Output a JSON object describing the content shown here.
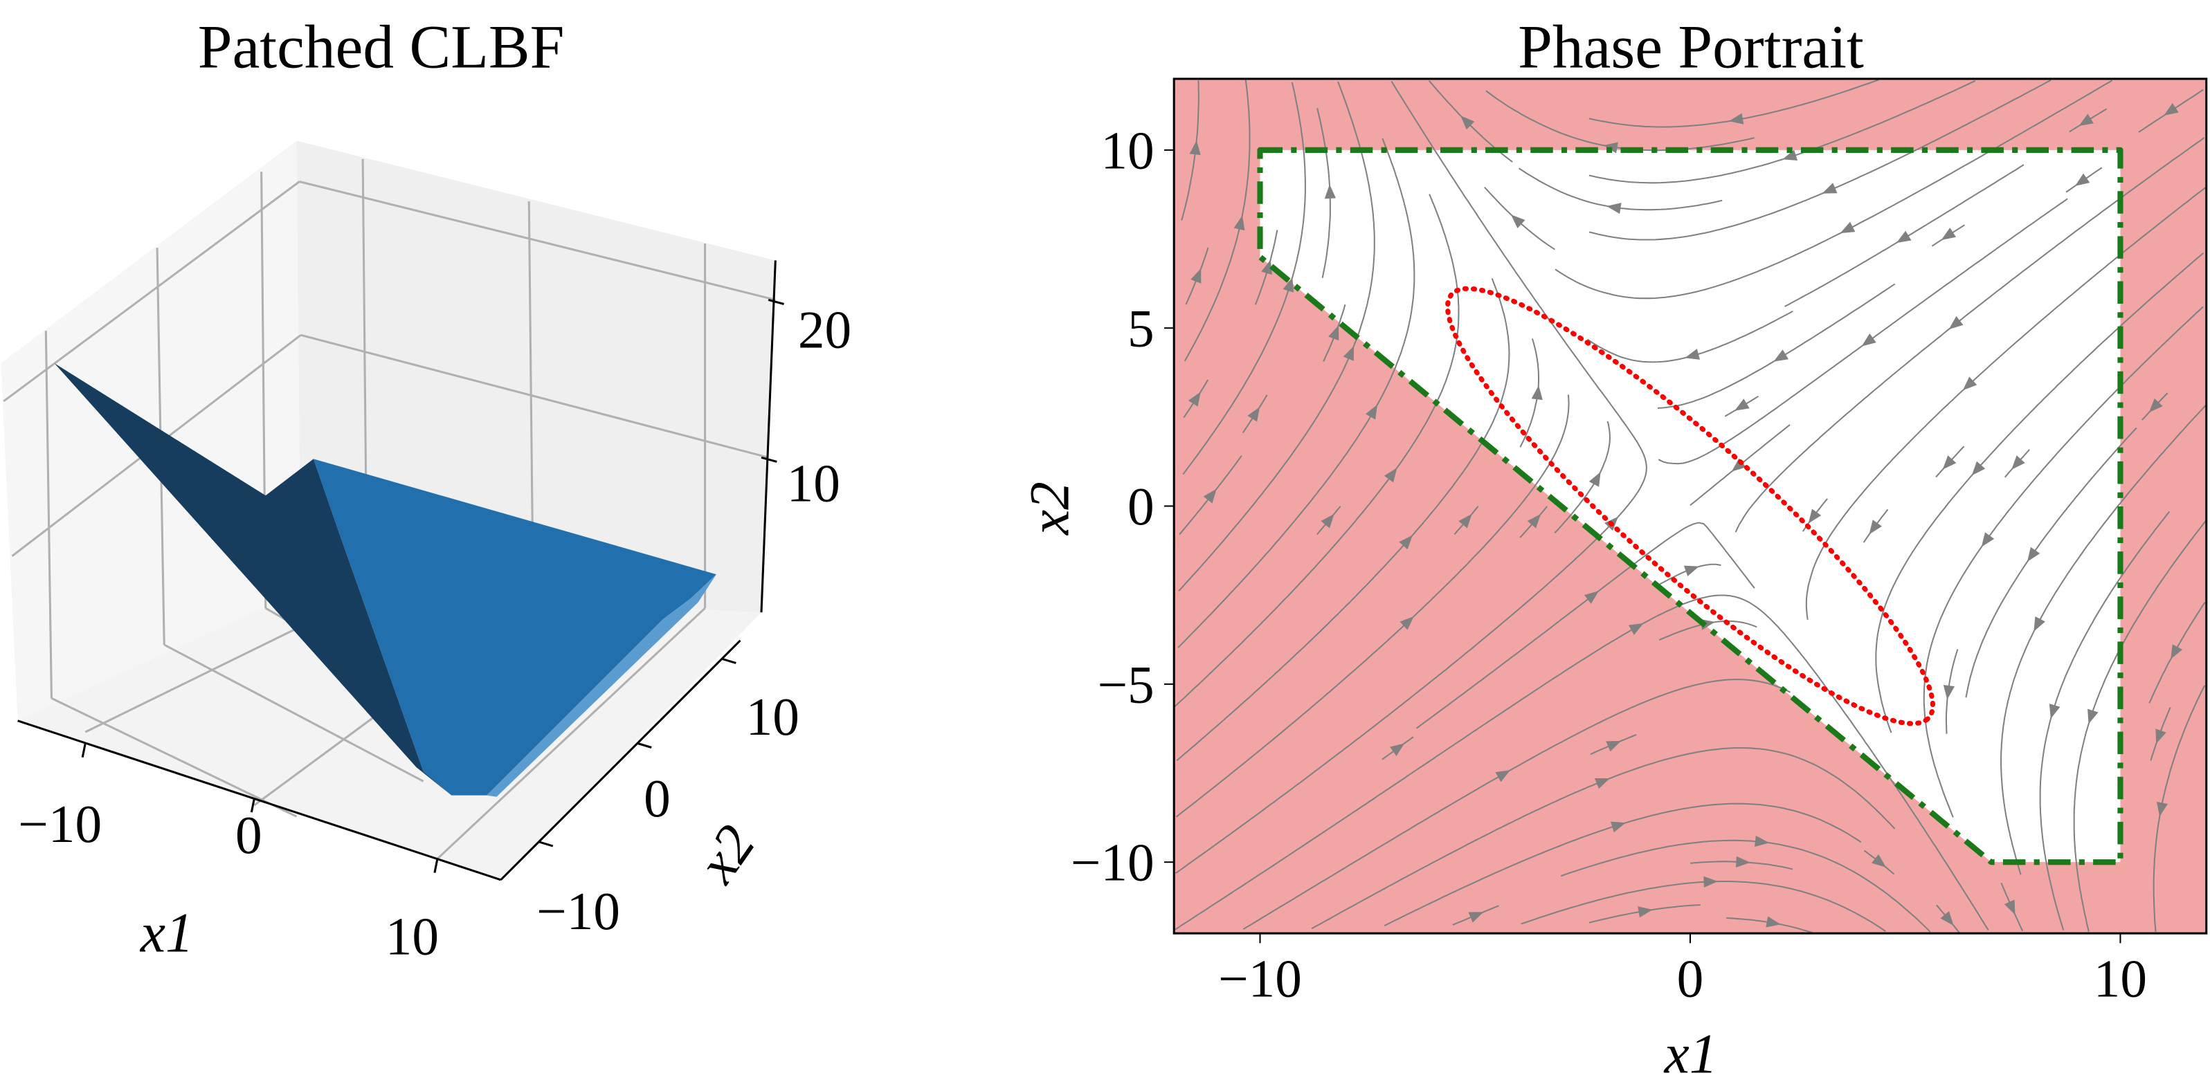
{
  "chart_data": [
    {
      "type": "surface3d",
      "title": "Patched CLBF",
      "xlabel": "x1",
      "ylabel": "x2",
      "zlabel": "",
      "xticks": [
        "−10",
        "0",
        "10"
      ],
      "yticks": [
        "−10",
        "0",
        "10"
      ],
      "zticks": [
        "10",
        "20"
      ],
      "xlim": [
        -12,
        12
      ],
      "ylim": [
        -12,
        12
      ],
      "zlim": [
        0,
        24
      ],
      "surface_color": "#1f77b4",
      "description_values": {
        "max_value_at_corner": 20,
        "flat_region_value": 5
      }
    },
    {
      "type": "streamplot",
      "title": "Phase Portrait",
      "xlabel": "x1",
      "ylabel": "x2",
      "xticks": [
        "−10",
        "0",
        "10"
      ],
      "yticks": [
        "−10",
        "−5",
        "0",
        "5",
        "10"
      ],
      "xtick_values": [
        -10,
        0,
        10
      ],
      "ytick_values": [
        -10,
        -5,
        0,
        5,
        10
      ],
      "xlim": [
        -12,
        12
      ],
      "ylim": [
        -12,
        12
      ],
      "unsafe_color": "#f2a5a5",
      "stream_color": "#808080",
      "safe_set_boundary": {
        "color": "#1a7a1a",
        "style": "dash-dot",
        "vertices": [
          [
            -10,
            10
          ],
          [
            10,
            10
          ],
          [
            10,
            -10
          ],
          [
            7,
            -10
          ],
          [
            -10,
            7
          ]
        ]
      },
      "ellipse": {
        "color": "#ff0000",
        "style": "dotted",
        "center": [
          0,
          0
        ],
        "extreme_points": [
          [
            -5.5,
            6
          ],
          [
            5.5,
            -6
          ]
        ]
      }
    }
  ]
}
